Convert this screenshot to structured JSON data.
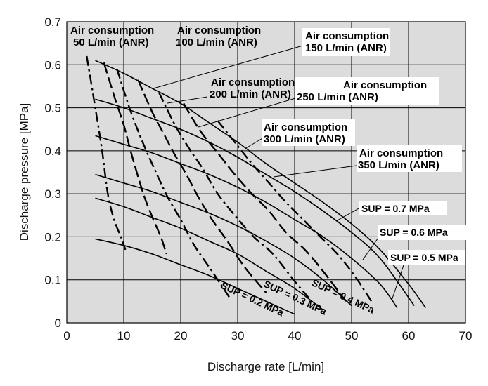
{
  "chart_data": {
    "type": "line",
    "xlabel": "Discharge rate [L/min]",
    "ylabel": "Discharge pressure [MPa]",
    "xlim": [
      0,
      70
    ],
    "ylim": [
      0,
      0.7
    ],
    "xticks": [
      "0",
      "10",
      "20",
      "30",
      "40",
      "50",
      "60",
      "70"
    ],
    "yticks": [
      "0",
      "0.1",
      "0.2",
      "0.3",
      "0.4",
      "0.5",
      "0.6",
      "0.7"
    ],
    "grid": true,
    "background": "#dcdcdc",
    "supply_curves": [
      {
        "name": "SUP = 0.2 MPa",
        "x": [
          5,
          10,
          15,
          20,
          25,
          30,
          35,
          40
        ],
        "y": [
          0.195,
          0.18,
          0.16,
          0.135,
          0.11,
          0.08,
          0.05,
          0.02
        ]
      },
      {
        "name": "SUP = 0.3 MPa",
        "x": [
          5,
          10,
          15,
          20,
          25,
          30,
          35,
          40,
          45
        ],
        "y": [
          0.29,
          0.27,
          0.245,
          0.22,
          0.19,
          0.16,
          0.12,
          0.08,
          0.03
        ]
      },
      {
        "name": "SUP = 0.4 MPa",
        "x": [
          5,
          10,
          15,
          20,
          25,
          30,
          35,
          40,
          45,
          50
        ],
        "y": [
          0.345,
          0.325,
          0.305,
          0.28,
          0.255,
          0.225,
          0.19,
          0.15,
          0.1,
          0.04
        ]
      },
      {
        "name": "SUP = 0.5 MPa",
        "x": [
          5,
          10,
          15,
          20,
          25,
          30,
          35,
          40,
          45,
          50,
          55,
          58
        ],
        "y": [
          0.435,
          0.415,
          0.395,
          0.37,
          0.345,
          0.315,
          0.28,
          0.24,
          0.2,
          0.15,
          0.09,
          0.035
        ]
      },
      {
        "name": "SUP = 0.6 MPa",
        "x": [
          5,
          10,
          15,
          20,
          25,
          30,
          35,
          40,
          45,
          50,
          55,
          61
        ],
        "y": [
          0.52,
          0.5,
          0.475,
          0.45,
          0.42,
          0.385,
          0.345,
          0.305,
          0.26,
          0.21,
          0.15,
          0.04
        ]
      },
      {
        "name": "SUP = 0.7 MPa",
        "x": [
          5,
          10,
          15,
          20,
          25,
          30,
          35,
          40,
          45,
          50,
          55,
          60,
          63
        ],
        "y": [
          0.61,
          0.58,
          0.545,
          0.51,
          0.465,
          0.42,
          0.37,
          0.325,
          0.28,
          0.23,
          0.17,
          0.09,
          0.035
        ]
      }
    ],
    "air_consumption_curves": [
      {
        "name": "Air consumption 50 L/min (ANR)",
        "style": "dashdot",
        "x": [
          3.5,
          5,
          6.2,
          7.2,
          8.3,
          9.5,
          10.3
        ],
        "y": [
          0.62,
          0.5,
          0.4,
          0.3,
          0.24,
          0.2,
          0.17
        ]
      },
      {
        "name": "Air consumption 100 L/min (ANR)",
        "style": "dashed",
        "x": [
          6.5,
          8.5,
          10,
          11.2,
          12.4,
          13.7,
          15.2,
          16.5,
          17.5
        ],
        "y": [
          0.605,
          0.52,
          0.46,
          0.4,
          0.345,
          0.29,
          0.24,
          0.2,
          0.16
        ]
      },
      {
        "name": "Air consumption 150 L/min (ANR)",
        "style": "dashdot",
        "x": [
          8.8,
          11,
          12.7,
          14.3,
          16,
          17.8,
          20,
          22.4,
          25.5,
          28.5
        ],
        "y": [
          0.59,
          0.5,
          0.44,
          0.39,
          0.34,
          0.29,
          0.24,
          0.18,
          0.12,
          0.06
        ]
      },
      {
        "name": "Air consumption 200 L/min (ANR)",
        "style": "dashed",
        "x": [
          12.5,
          15,
          17,
          19,
          21,
          23.2,
          25.5,
          28.2,
          31.2,
          35
        ],
        "y": [
          0.565,
          0.49,
          0.44,
          0.39,
          0.345,
          0.29,
          0.24,
          0.19,
          0.13,
          0.07
        ]
      },
      {
        "name": "Air consumption 250 L/min (ANR)",
        "style": "dashdot",
        "x": [
          16.2,
          19,
          21.5,
          23.8,
          26.5,
          29.5,
          32.8,
          36.2,
          39.8,
          43
        ],
        "y": [
          0.535,
          0.46,
          0.405,
          0.36,
          0.3,
          0.25,
          0.2,
          0.16,
          0.1,
          0.05
        ]
      },
      {
        "name": "Air consumption 300 L/min (ANR)",
        "style": "dashed",
        "x": [
          20.5,
          23.5,
          26.5,
          29.5,
          32.5,
          35.5,
          38.5,
          41.8,
          45,
          49
        ],
        "y": [
          0.51,
          0.445,
          0.395,
          0.345,
          0.3,
          0.26,
          0.21,
          0.17,
          0.12,
          0.05
        ]
      },
      {
        "name": "Air consumption 350 L/min (ANR)",
        "style": "dashdot",
        "x": [
          26.5,
          29.5,
          32.5,
          35.5,
          38.5,
          41.5,
          44.5,
          47.5,
          50.5,
          53.5
        ],
        "y": [
          0.47,
          0.42,
          0.37,
          0.325,
          0.28,
          0.24,
          0.2,
          0.16,
          0.11,
          0.05
        ]
      }
    ],
    "annotations": {
      "ac50": [
        "Air consumption",
        "50 L/min (ANR)"
      ],
      "ac100": [
        "Air consumption",
        "100 L/min (ANR)"
      ],
      "ac150": [
        "Air consumption",
        "150 L/min (ANR)"
      ],
      "ac200": [
        "Air consumption",
        "200 L/min (ANR)"
      ],
      "ac250": [
        "Air consumption",
        "250 L/min (ANR)"
      ],
      "ac300": [
        "Air consumption",
        "300 L/min (ANR)"
      ],
      "ac350": [
        "Air consumption",
        "350 L/min (ANR)"
      ],
      "sup07": "SUP = 0.7 MPa",
      "sup06": "SUP = 0.6 MPa",
      "sup05": "SUP = 0.5 MPa",
      "sup04": "SUP = 0.4 MPa",
      "sup03": "SUP = 0.3 MPa",
      "sup02": "SUP = 0.2 MPa"
    }
  }
}
